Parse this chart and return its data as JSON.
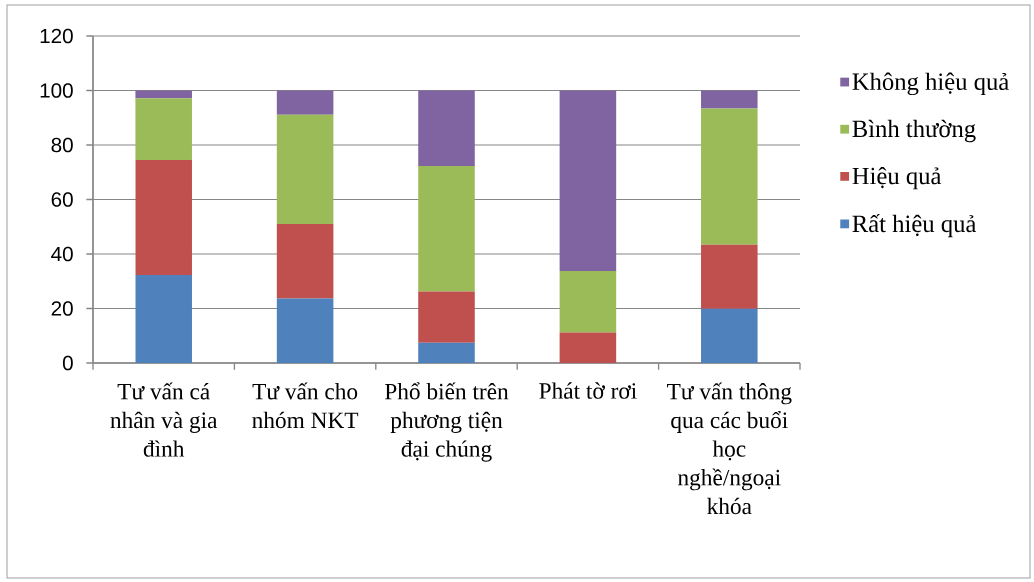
{
  "chart_data": {
    "type": "bar",
    "stacked": true,
    "categories": [
      "Tư vấn cá nhân và gia đình",
      "Tư vấn cho nhóm NKT",
      "Phổ biến trên phương tiện đại chúng",
      "Phát tờ rơi",
      "Tư vấn thông qua các buổi học nghề/ngoại khóa"
    ],
    "series": [
      {
        "name": "Rất hiệu quả",
        "color": "#4f81bd",
        "values": [
          32.3,
          23.7,
          7.4,
          0,
          19.9
        ]
      },
      {
        "name": "Hiệu quả",
        "color": "#c0504d",
        "values": [
          42.2,
          27.3,
          18.8,
          11.2,
          23.5
        ]
      },
      {
        "name": "Bình thường",
        "color": "#9bbb59",
        "values": [
          22.7,
          40.1,
          46.1,
          22.6,
          50.0
        ]
      },
      {
        "name": "Không hiệu quả",
        "color": "#8064a2",
        "values": [
          2.8,
          8.9,
          27.7,
          66.2,
          6.6
        ]
      }
    ],
    "ylim": [
      0,
      120
    ],
    "yticks": [
      0,
      20,
      40,
      60,
      80,
      100,
      120
    ],
    "grid": "y",
    "legend": "right"
  }
}
